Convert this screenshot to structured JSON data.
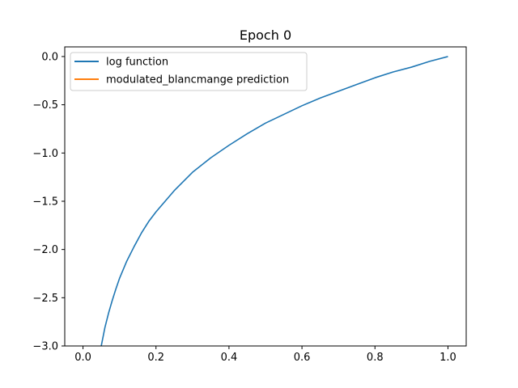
{
  "chart_data": {
    "type": "line",
    "title": "Epoch 0",
    "xlabel": "",
    "ylabel": "",
    "xlim": [
      -0.05,
      1.05
    ],
    "ylim": [
      -3.0,
      0.1
    ],
    "x_ticks": [
      0.0,
      0.2,
      0.4,
      0.6,
      0.8,
      1.0
    ],
    "x_tick_labels": [
      "0.0",
      "0.2",
      "0.4",
      "0.6",
      "0.8",
      "1.0"
    ],
    "y_ticks": [
      0.0,
      -0.5,
      -1.0,
      -1.5,
      -2.0,
      -2.5,
      -3.0
    ],
    "y_tick_labels": [
      "0.0",
      "−0.5",
      "−1.0",
      "−1.5",
      "−2.0",
      "−2.5",
      "−3.0"
    ],
    "grid": false,
    "legend_position": "upper-left",
    "series": [
      {
        "name": "log function",
        "color": "#1f77b4",
        "x": [
          0.05,
          0.06,
          0.07,
          0.08,
          0.09,
          0.1,
          0.12,
          0.14,
          0.16,
          0.18,
          0.2,
          0.25,
          0.3,
          0.35,
          0.4,
          0.45,
          0.5,
          0.55,
          0.6,
          0.65,
          0.7,
          0.75,
          0.8,
          0.85,
          0.9,
          0.95,
          1.0
        ],
        "y": [
          -3.0,
          -2.81,
          -2.66,
          -2.53,
          -2.41,
          -2.3,
          -2.12,
          -1.97,
          -1.83,
          -1.71,
          -1.61,
          -1.39,
          -1.2,
          -1.05,
          -0.92,
          -0.8,
          -0.69,
          -0.6,
          -0.51,
          -0.43,
          -0.36,
          -0.29,
          -0.22,
          -0.16,
          -0.11,
          -0.05,
          0.0
        ]
      },
      {
        "name": "modulated_blancmange prediction",
        "color": "#ff7f0e",
        "x": [],
        "y": []
      }
    ]
  }
}
